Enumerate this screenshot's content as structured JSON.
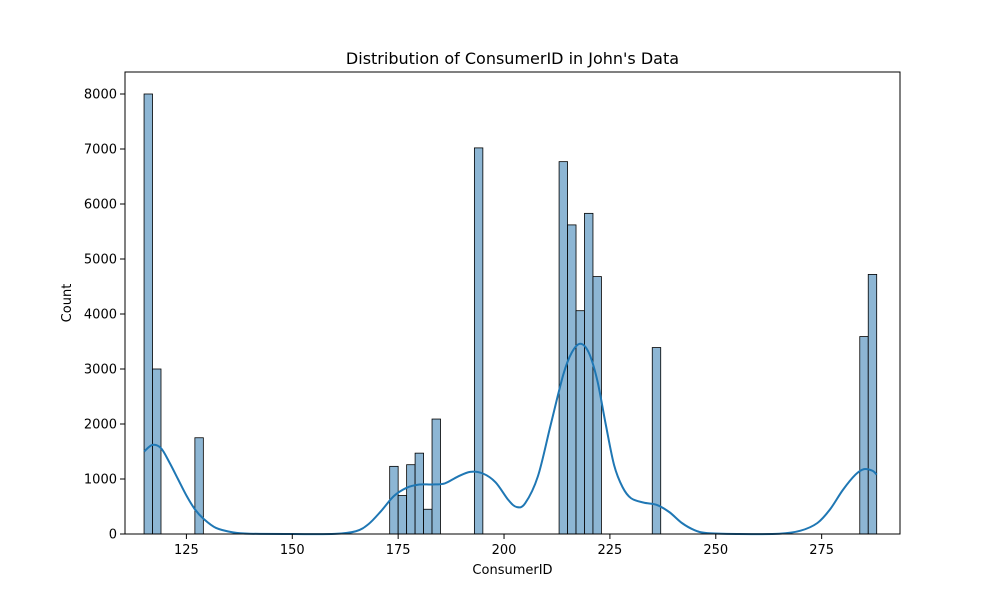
{
  "chart_data": {
    "type": "histogram",
    "title": "Distribution of ConsumerID in John's Data",
    "xlabel": "ConsumerID",
    "ylabel": "Count",
    "xlim": [
      110.5,
      293.5
    ],
    "ylim": [
      0,
      8400
    ],
    "x_ticks": [
      125,
      150,
      175,
      200,
      225,
      250,
      275
    ],
    "y_ticks": [
      0,
      1000,
      2000,
      3000,
      4000,
      5000,
      6000,
      7000,
      8000
    ],
    "bin_width": 2,
    "bars": [
      {
        "x0": 115,
        "x1": 117,
        "count": 8000
      },
      {
        "x0": 117,
        "x1": 119,
        "count": 3000
      },
      {
        "x0": 127,
        "x1": 129,
        "count": 1750
      },
      {
        "x0": 173,
        "x1": 175,
        "count": 1230
      },
      {
        "x0": 175,
        "x1": 177,
        "count": 700
      },
      {
        "x0": 177,
        "x1": 179,
        "count": 1260
      },
      {
        "x0": 179,
        "x1": 181,
        "count": 1470
      },
      {
        "x0": 181,
        "x1": 183,
        "count": 450
      },
      {
        "x0": 183,
        "x1": 185,
        "count": 2090
      },
      {
        "x0": 193,
        "x1": 195,
        "count": 7020
      },
      {
        "x0": 213,
        "x1": 215,
        "count": 6770
      },
      {
        "x0": 215,
        "x1": 217,
        "count": 5620
      },
      {
        "x0": 217,
        "x1": 219,
        "count": 4060
      },
      {
        "x0": 219,
        "x1": 221,
        "count": 5830
      },
      {
        "x0": 221,
        "x1": 223,
        "count": 4680
      },
      {
        "x0": 235,
        "x1": 237,
        "count": 3390
      },
      {
        "x0": 284,
        "x1": 286,
        "count": 3590
      },
      {
        "x0": 286,
        "x1": 288,
        "count": 4720
      }
    ],
    "kde": [
      [
        115,
        1500
      ],
      [
        117,
        1620
      ],
      [
        119,
        1560
      ],
      [
        121,
        1300
      ],
      [
        123,
        1000
      ],
      [
        125,
        700
      ],
      [
        127,
        450
      ],
      [
        129,
        280
      ],
      [
        132,
        110
      ],
      [
        136,
        30
      ],
      [
        140,
        5
      ],
      [
        150,
        0
      ],
      [
        160,
        2
      ],
      [
        165,
        50
      ],
      [
        168,
        180
      ],
      [
        171,
        420
      ],
      [
        174,
        690
      ],
      [
        177,
        840
      ],
      [
        180,
        900
      ],
      [
        183,
        900
      ],
      [
        186,
        920
      ],
      [
        189,
        1040
      ],
      [
        192,
        1130
      ],
      [
        195,
        1100
      ],
      [
        198,
        940
      ],
      [
        201,
        620
      ],
      [
        203,
        490
      ],
      [
        205,
        560
      ],
      [
        208,
        1050
      ],
      [
        211,
        1980
      ],
      [
        214,
        2900
      ],
      [
        216,
        3300
      ],
      [
        218,
        3460
      ],
      [
        220,
        3300
      ],
      [
        222,
        2800
      ],
      [
        224,
        2000
      ],
      [
        226,
        1250
      ],
      [
        228,
        850
      ],
      [
        230,
        650
      ],
      [
        233,
        570
      ],
      [
        236,
        530
      ],
      [
        239,
        400
      ],
      [
        242,
        200
      ],
      [
        245,
        70
      ],
      [
        248,
        15
      ],
      [
        255,
        0
      ],
      [
        265,
        5
      ],
      [
        270,
        60
      ],
      [
        274,
        200
      ],
      [
        277,
        450
      ],
      [
        280,
        800
      ],
      [
        283,
        1080
      ],
      [
        285,
        1180
      ],
      [
        287,
        1150
      ],
      [
        288,
        1080
      ]
    ],
    "colors": {
      "bar_fill": "#8db6d4",
      "bar_edge": "#000000",
      "kde_line": "#1f77b4"
    }
  }
}
